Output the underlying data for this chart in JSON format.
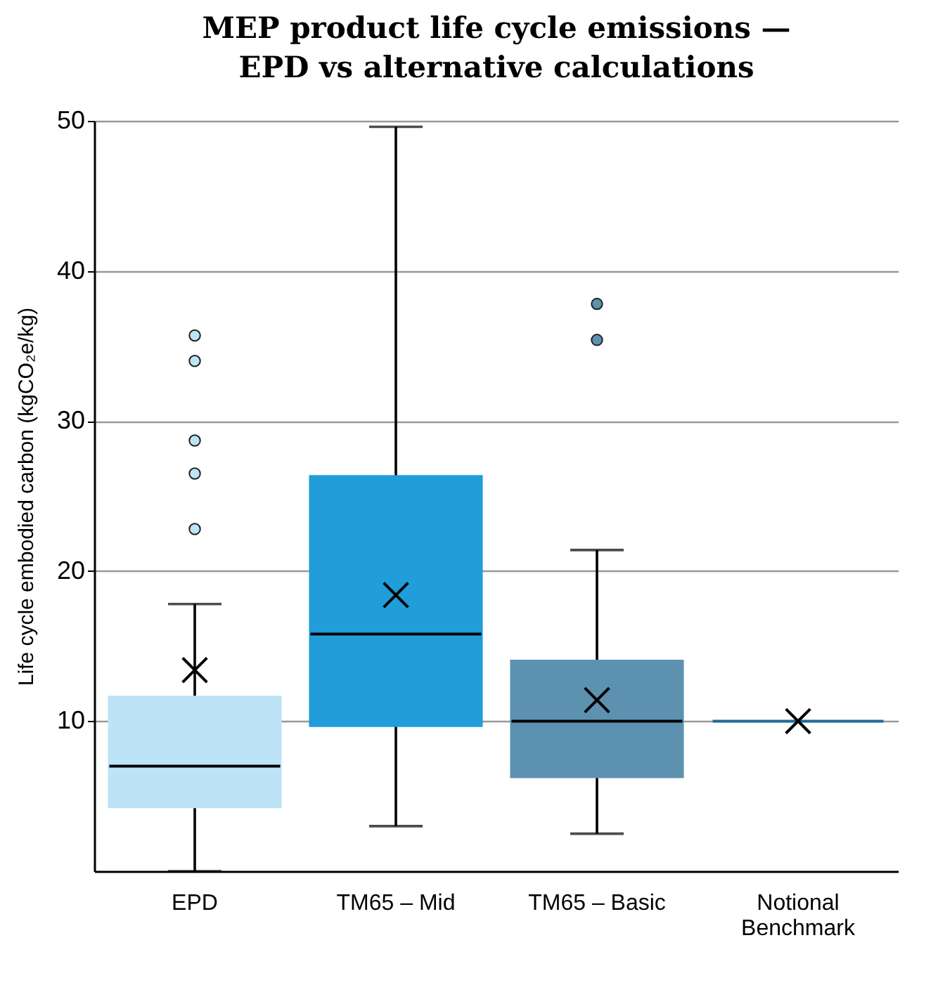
{
  "chart_data": {
    "type": "box",
    "title": "MEP product life cycle emissions —\nEPD vs alternative calculations",
    "ylabel": "Life cycle embodied carbon (kgCO₂e/kg)",
    "categories": [
      "EPD",
      "TM65 – Mid",
      "TM65 – Basic",
      "Notional Benchmark"
    ],
    "colors": [
      "#bde3f7",
      "#219dd9",
      "#5d91b0",
      "#1f6d9a"
    ],
    "boxes": [
      {
        "low": 0,
        "q1": 4.3,
        "median": 7.0,
        "q3": 11.6,
        "high": 17.8,
        "mean": 13.4,
        "outliers": [
          35.7,
          34.0,
          28.7,
          26.5,
          22.8
        ]
      },
      {
        "low": 3.0,
        "q1": 9.7,
        "median": 15.8,
        "q3": 26.3,
        "high": 49.6,
        "mean": 18.4
      },
      {
        "low": 2.5,
        "q1": 6.3,
        "median": 10.0,
        "q3": 14.0,
        "high": 21.4,
        "mean": 11.4,
        "outliers": [
          37.8,
          35.4
        ]
      },
      {
        "low": 10,
        "q1": 10,
        "median": 10,
        "q3": 10,
        "high": 10,
        "mean": 10
      }
    ],
    "ylim": [
      0,
      50
    ],
    "yticks": [
      10,
      20,
      30,
      40,
      50
    ],
    "grid": "y"
  }
}
